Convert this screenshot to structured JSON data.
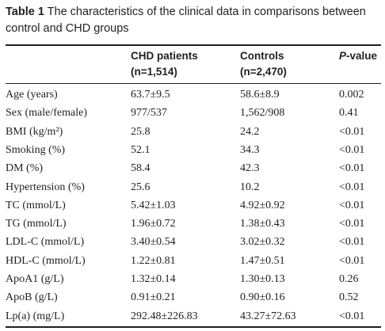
{
  "caption": {
    "label": "Table 1",
    "text": "The characteristics of the clinical data in comparisons between control and CHD groups"
  },
  "headers": {
    "col1_line1": "CHD patients",
    "col1_line2": "(n=1,514)",
    "col2_line1": "Controls",
    "col2_line2": "(n=2,470)",
    "col3_italic": "P",
    "col3_rest": "-value"
  },
  "rows": [
    {
      "label": "Age (years)",
      "chd": "63.7±9.5",
      "controls": "58.6±8.9",
      "p": "0.002"
    },
    {
      "label": "Sex (male/female)",
      "chd": "977/537",
      "controls": "1,562/908",
      "p": "0.41"
    },
    {
      "label": "BMI (kg/m²)",
      "chd": "25.8",
      "controls": "24.2",
      "p": "<0.01"
    },
    {
      "label": "Smoking (%)",
      "chd": "52.1",
      "controls": "34.3",
      "p": "<0.01"
    },
    {
      "label": "DM (%)",
      "chd": "58.4",
      "controls": "42.3",
      "p": "<0.01"
    },
    {
      "label": "Hypertension (%)",
      "chd": "25.6",
      "controls": "10.2",
      "p": "<0.01"
    },
    {
      "label": "TC (mmol/L)",
      "chd": "5.42±1.03",
      "controls": "4.92±0.92",
      "p": "<0.01"
    },
    {
      "label": "TG (mmol/L)",
      "chd": "1.96±0.72",
      "controls": "1.38±0.43",
      "p": "<0.01"
    },
    {
      "label": "LDL-C (mmol/L)",
      "chd": "3.40±0.54",
      "controls": "3.02±0.32",
      "p": "<0.01"
    },
    {
      "label": "HDL-C (mmol/L)",
      "chd": "1.22±0.81",
      "controls": "1.47±0.51",
      "p": "<0.01"
    },
    {
      "label": "ApoA1 (g/L)",
      "chd": "1.32±0.14",
      "controls": "1.30±0.13",
      "p": "0.26"
    },
    {
      "label": "ApoB (g/L)",
      "chd": "0.91±0.21",
      "controls": "0.90±0.16",
      "p": "0.52"
    },
    {
      "label": "Lp(a) (mg/L)",
      "chd": "292.48±226.83",
      "controls": "43.27±72.63",
      "p": "<0.01"
    }
  ]
}
